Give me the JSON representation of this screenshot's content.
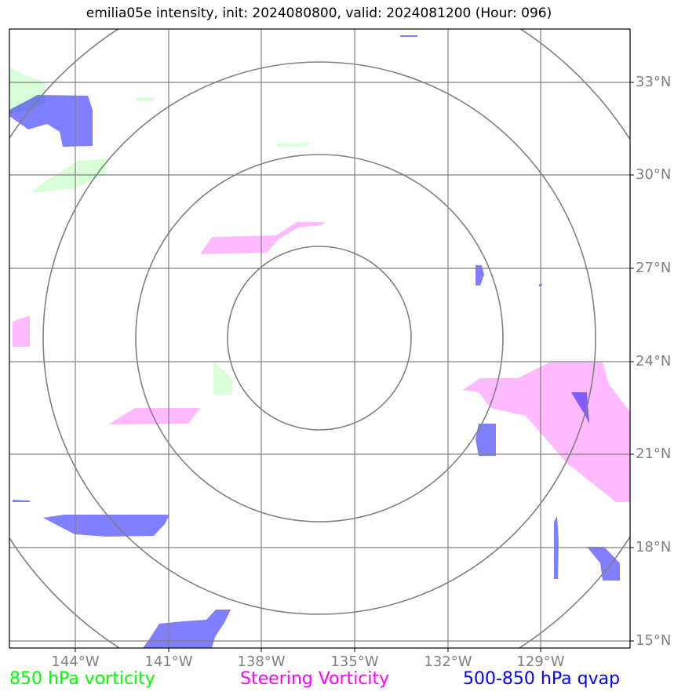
{
  "title": "emilia05e intensity, init: 2024080800, valid: 2024081200 (Hour: 096)",
  "lat_labels": [
    "33°N",
    "30°N",
    "27°N",
    "24°N",
    "21°N",
    "18°N",
    "15°N"
  ],
  "lon_labels": [
    "144°W",
    "141°W",
    "138°W",
    "135°W",
    "132°W",
    "129°W"
  ],
  "legend": {
    "green": "850 hPa vorticity",
    "magenta": "Steering Vorticity",
    "blue": "500-850 hPa qvap"
  },
  "colors": {
    "green": "#00ff00",
    "magenta": "#ff00ff",
    "blue": "#0000ff",
    "grid": "#808080"
  }
}
